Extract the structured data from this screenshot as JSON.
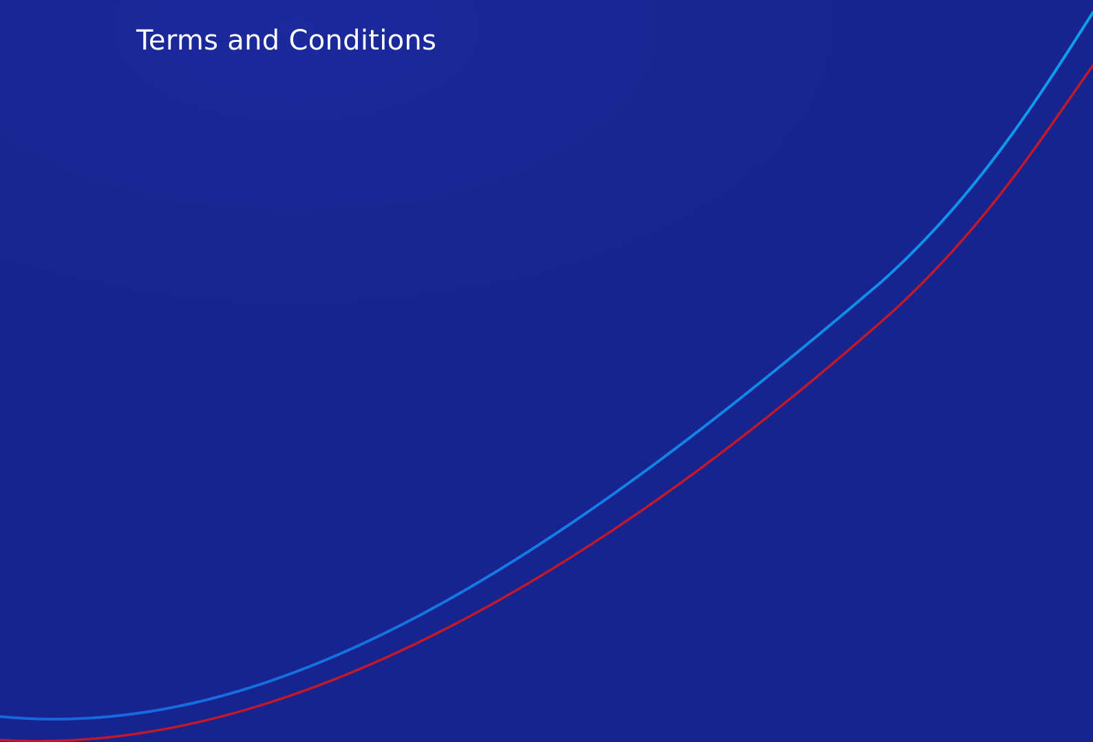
{
  "page": {
    "title": "Terms and Conditions"
  },
  "colors": {
    "background": "#18248e",
    "title_text": "#ffffff",
    "curve_blue_start": "#1766e0",
    "curve_blue_end": "#0aa0f0",
    "curve_red": "#c2182a"
  }
}
